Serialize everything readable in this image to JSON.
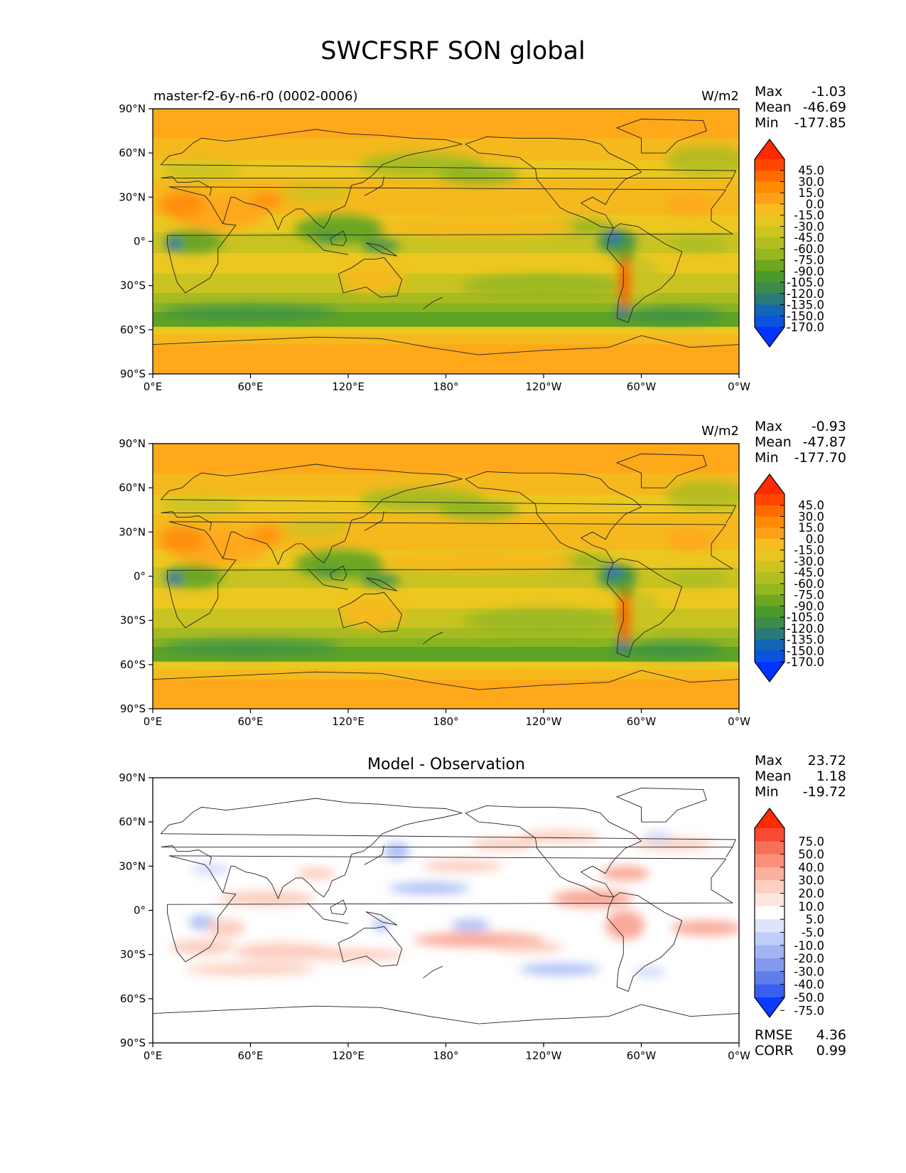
{
  "figure": {
    "title": "SWCFSRF SON global"
  },
  "chart_data": [
    {
      "type": "heatmap",
      "title": "master-f2-6y-n6-r0 (0002-0006)",
      "units": "W/m2",
      "x_ticks": [
        "0°E",
        "60°E",
        "120°E",
        "180°",
        "120°W",
        "60°W",
        "0°W"
      ],
      "y_ticks": [
        "90°N",
        "60°N",
        "30°N",
        "0°",
        "30°S",
        "60°S",
        "90°S"
      ],
      "stats": [
        {
          "label": "Max",
          "value": "-1.03"
        },
        {
          "label": "Mean",
          "value": "-46.69"
        },
        {
          "label": "Min",
          "value": "-177.85"
        }
      ],
      "colorbar": {
        "labels": [
          "45.0",
          "30.0",
          "15.0",
          "0.0",
          "-15.0",
          "-30.0",
          "-45.0",
          "-60.0",
          "-75.0",
          "-90.0",
          "-105.0",
          "-120.0",
          "-135.0",
          "-150.0",
          "-170.0"
        ],
        "colors": [
          "#ff2a00",
          "#ff4500",
          "#ff6a00",
          "#ff8c00",
          "#ffa01a",
          "#f7bd1f",
          "#e8c51f",
          "#cdc420",
          "#b2be1f",
          "#95b720",
          "#6ea720",
          "#4c9a2a",
          "#3d8a4a",
          "#2a7a7a",
          "#1166b5",
          "#0a52e0",
          "#0033ff"
        ],
        "extend": "both"
      }
    },
    {
      "type": "heatmap",
      "title": "",
      "units": "W/m2",
      "x_ticks": [
        "0°E",
        "60°E",
        "120°E",
        "180°",
        "120°W",
        "60°W",
        "0°W"
      ],
      "y_ticks": [
        "90°N",
        "60°N",
        "30°N",
        "0°",
        "30°S",
        "60°S",
        "90°S"
      ],
      "stats": [
        {
          "label": "Max",
          "value": "-0.93"
        },
        {
          "label": "Mean",
          "value": "-47.87"
        },
        {
          "label": "Min",
          "value": "-177.70"
        }
      ],
      "colorbar": {
        "labels": [
          "45.0",
          "30.0",
          "15.0",
          "0.0",
          "-15.0",
          "-30.0",
          "-45.0",
          "-60.0",
          "-75.0",
          "-90.0",
          "-105.0",
          "-120.0",
          "-135.0",
          "-150.0",
          "-170.0"
        ],
        "colors": [
          "#ff2a00",
          "#ff4500",
          "#ff6a00",
          "#ff8c00",
          "#ffa01a",
          "#f7bd1f",
          "#e8c51f",
          "#cdc420",
          "#b2be1f",
          "#95b720",
          "#6ea720",
          "#4c9a2a",
          "#3d8a4a",
          "#2a7a7a",
          "#1166b5",
          "#0a52e0",
          "#0033ff"
        ],
        "extend": "both"
      }
    },
    {
      "type": "heatmap",
      "title": "Model - Observation",
      "units": "",
      "x_ticks": [
        "0°E",
        "60°E",
        "120°E",
        "180°",
        "120°W",
        "60°W",
        "0°W"
      ],
      "y_ticks": [
        "90°N",
        "60°N",
        "30°N",
        "0°",
        "30°S",
        "60°S",
        "90°S"
      ],
      "stats": [
        {
          "label": "Max",
          "value": "23.72"
        },
        {
          "label": "Mean",
          "value": "1.18"
        },
        {
          "label": "Min",
          "value": "-19.72"
        }
      ],
      "bottom_stats": [
        {
          "label": "RMSE",
          "value": "4.36"
        },
        {
          "label": "CORR",
          "value": "0.99"
        }
      ],
      "colorbar": {
        "labels": [
          "75.0",
          "50.0",
          "40.0",
          "30.0",
          "20.0",
          "10.0",
          "5.0",
          "-5.0",
          "-10.0",
          "-20.0",
          "-30.0",
          "-40.0",
          "-50.0",
          "-75.0"
        ],
        "colors": [
          "#ff2a00",
          "#f64a35",
          "#f7705a",
          "#fa907a",
          "#fcb09e",
          "#fdcfc2",
          "#fde6de",
          "#ffffff",
          "#dde4fb",
          "#c0cdf7",
          "#a2b5f3",
          "#8299ee",
          "#607ee9",
          "#3a5ff0",
          "#0a3aff"
        ],
        "extend": "both"
      }
    }
  ]
}
